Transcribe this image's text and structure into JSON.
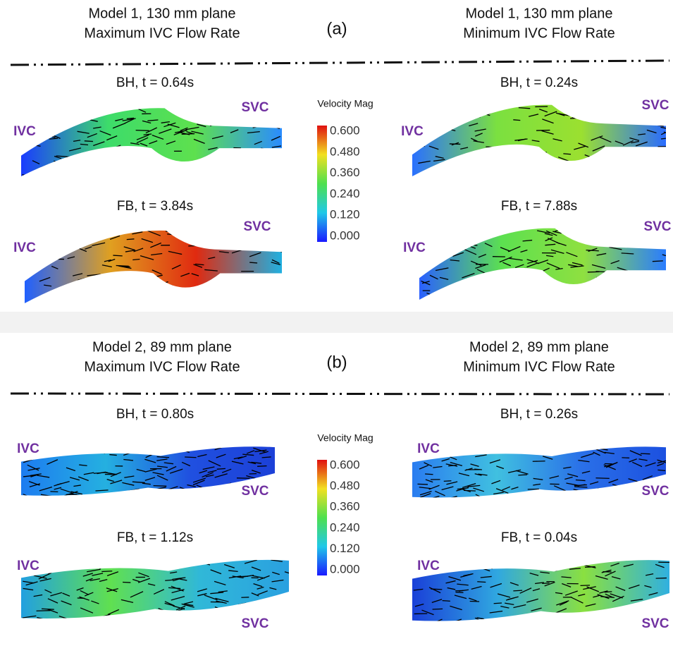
{
  "panels": [
    {
      "label": "(a)",
      "left_header": [
        "Model 1, 130 mm plane",
        "Maximum IVC Flow Rate"
      ],
      "right_header": [
        "Model 1, 130 mm plane",
        "Minimum IVC Flow Rate"
      ],
      "colorbar": {
        "title": "Velocity Mag",
        "ticks": [
          "0.600",
          "0.480",
          "0.360",
          "0.240",
          "0.120",
          "0.000"
        ]
      },
      "plots": [
        {
          "title": "BH, t = 0.64s",
          "inlet": "IVC",
          "outlet": "SVC"
        },
        {
          "title": "BH, t = 0.24s",
          "inlet": "IVC",
          "outlet": "SVC"
        },
        {
          "title": "FB, t = 3.84s",
          "inlet": "IVC",
          "outlet": "SVC"
        },
        {
          "title": "FB, t = 7.88s",
          "inlet": "IVC",
          "outlet": "SVC"
        }
      ]
    },
    {
      "label": "(b)",
      "left_header": [
        "Model 2, 89 mm plane",
        "Maximum IVC Flow Rate"
      ],
      "right_header": [
        "Model 2, 89 mm plane",
        "Minimum IVC Flow Rate"
      ],
      "colorbar": {
        "title": "Velocity Mag",
        "ticks": [
          "0.600",
          "0.480",
          "0.360",
          "0.240",
          "0.120",
          "0.000"
        ]
      },
      "plots": [
        {
          "title": "BH, t = 0.80s",
          "inlet": "IVC",
          "outlet": "SVC"
        },
        {
          "title": "BH, t = 0.26s",
          "inlet": "IVC",
          "outlet": "SVC"
        },
        {
          "title": "FB, t = 1.12s",
          "inlet": "IVC",
          "outlet": "SVC"
        },
        {
          "title": "FB, t = 0.04s",
          "inlet": "IVC",
          "outlet": "SVC"
        }
      ]
    }
  ]
}
